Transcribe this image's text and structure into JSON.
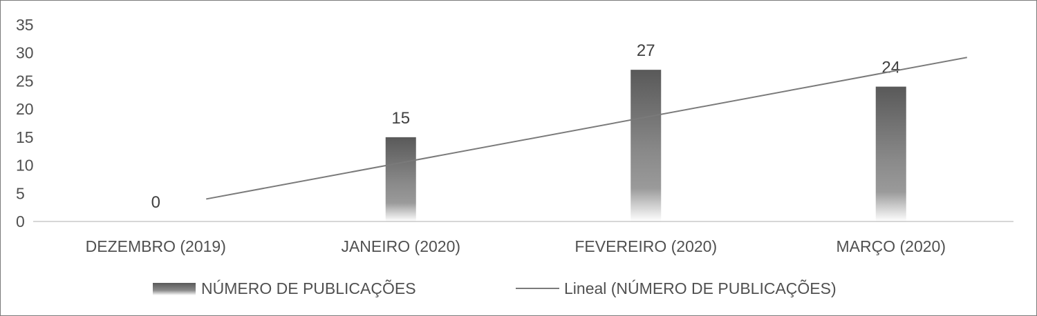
{
  "chart_data": {
    "type": "bar",
    "categories": [
      "DEZEMBRO (2019)",
      "JANEIRO (2020)",
      "FEVEREIRO (2020)",
      "MARÇO (2020)"
    ],
    "series": [
      {
        "name": "NÚMERO DE PUBLICAÇÕES",
        "values": [
          0,
          15,
          27,
          24
        ]
      }
    ],
    "trendline": {
      "name": "Lineal (NÚMERO DE PUBLICAÇÕES)",
      "type": "linear",
      "start": 4,
      "end": 29.2
    },
    "data_labels": [
      "0",
      "15",
      "27",
      "24"
    ],
    "yticks": [
      0,
      5,
      10,
      15,
      20,
      25,
      30,
      35
    ],
    "ylim": [
      0,
      35
    ],
    "grid": false,
    "legend_position": "bottom",
    "colors": {
      "bar_top": "#595959",
      "bar_mid": "#8a8a8a",
      "bar_bottom": "#ffffff",
      "trend": "#7a7a7a",
      "axis": "#c8c8c8"
    }
  }
}
